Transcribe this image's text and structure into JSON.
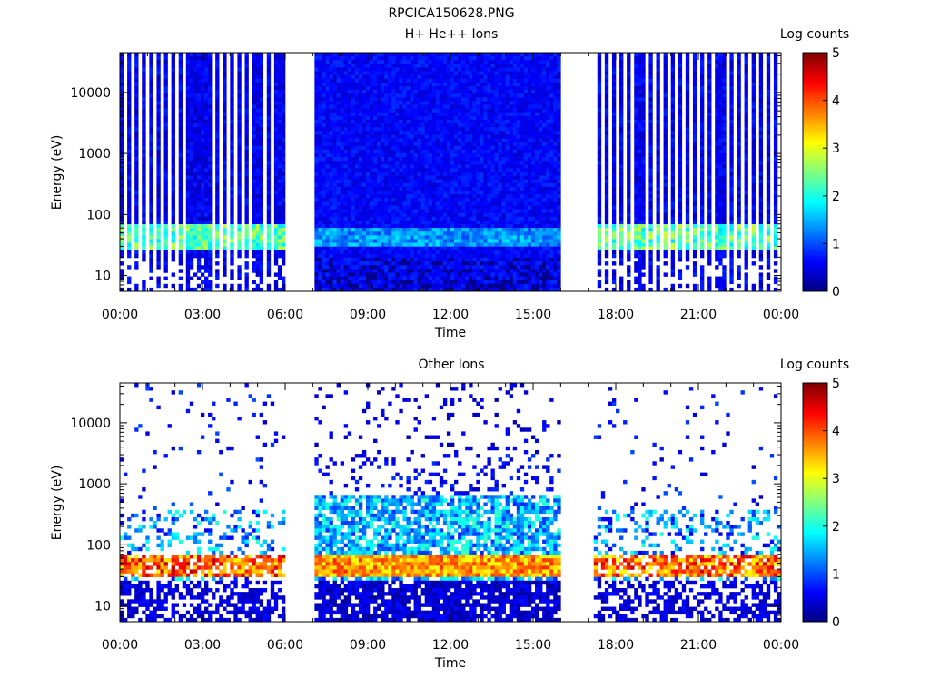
{
  "figure_title": "RPCICA150628.PNG",
  "chart_data": [
    {
      "type": "heatmap",
      "title": "H+ He++ Ions",
      "xlabel": "Time",
      "ylabel": "Energy (eV)",
      "x_ticks": [
        "00:00",
        "03:00",
        "06:00",
        "09:00",
        "12:00",
        "15:00",
        "18:00",
        "21:00",
        "00:00"
      ],
      "x_range_hours": [
        0,
        24
      ],
      "y_scale": "log",
      "y_ticks": [
        10,
        100,
        1000,
        10000
      ],
      "y_tick_labels": [
        "10",
        "100",
        "1000",
        "10000"
      ],
      "ylim": [
        5.5,
        45000
      ],
      "colorbar": {
        "label": "Log counts",
        "min": 0,
        "max": 5,
        "ticks": [
          "0",
          "1",
          "2",
          "3",
          "4",
          "5"
        ]
      },
      "data_gaps_hours": [
        [
          6.0,
          7.05
        ],
        [
          15.95,
          17.2
        ]
      ],
      "features": [
        {
          "time_range_hours": [
            0,
            6.0
          ],
          "pattern": "striped",
          "background_log_counts": 0.3,
          "band_eV": [
            25,
            70
          ],
          "band_log_counts": 2.3
        },
        {
          "time_range_hours": [
            7.05,
            15.95
          ],
          "pattern": "continuous",
          "background_log_counts": 0.4,
          "band_eV": [
            30,
            60
          ],
          "band_log_counts": 1.2
        },
        {
          "time_range_hours": [
            17.2,
            24
          ],
          "pattern": "striped",
          "background_log_counts": 0.3,
          "band_eV": [
            25,
            70
          ],
          "band_log_counts": 2.3
        }
      ]
    },
    {
      "type": "heatmap",
      "title": "Other Ions",
      "xlabel": "Time",
      "ylabel": "Energy (eV)",
      "x_ticks": [
        "00:00",
        "03:00",
        "06:00",
        "09:00",
        "12:00",
        "15:00",
        "18:00",
        "21:00",
        "00:00"
      ],
      "x_range_hours": [
        0,
        24
      ],
      "y_scale": "log",
      "y_ticks": [
        10,
        100,
        1000,
        10000
      ],
      "y_tick_labels": [
        "10",
        "100",
        "1000",
        "10000"
      ],
      "ylim": [
        5.5,
        45000
      ],
      "colorbar": {
        "label": "Log counts",
        "min": 0,
        "max": 5,
        "ticks": [
          "0",
          "1",
          "2",
          "3",
          "4",
          "5"
        ]
      },
      "data_gaps_hours": [
        [
          6.0,
          7.05
        ],
        [
          15.95,
          17.2
        ]
      ],
      "features": [
        {
          "time_range_hours": [
            0,
            6.0
          ],
          "pattern": "sparse",
          "background_log_counts": 0.5,
          "band_eV": [
            30,
            65
          ],
          "band_log_counts": 4.1
        },
        {
          "time_range_hours": [
            7.05,
            15.95
          ],
          "pattern": "dense",
          "background_log_counts": 0.8,
          "band_eV": [
            28,
            65
          ],
          "band_log_counts": 3.6,
          "upper_cloud_eV": [
            65,
            700
          ],
          "upper_cloud_log_counts": 1.5
        },
        {
          "time_range_hours": [
            17.2,
            24
          ],
          "pattern": "sparse",
          "background_log_counts": 0.5,
          "band_eV": [
            30,
            65
          ],
          "band_log_counts": 4.0
        }
      ]
    }
  ]
}
